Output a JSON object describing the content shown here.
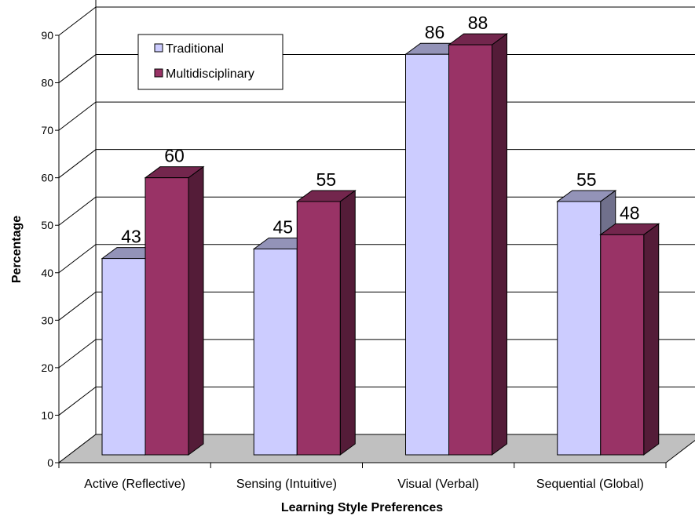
{
  "chart_data": {
    "type": "bar",
    "title": "",
    "xlabel": "Learning Style Preferences",
    "ylabel": "Percentage",
    "ylim": [
      0,
      90
    ],
    "yticks": [
      0,
      10,
      20,
      30,
      40,
      50,
      60,
      70,
      80,
      90
    ],
    "categories": [
      "Active (Reflective)",
      "Sensing (Intuitive)",
      "Visual (Verbal)",
      "Sequential (Global)"
    ],
    "series": [
      {
        "name": "Traditional",
        "values": [
          43,
          45,
          86,
          55
        ],
        "color": "#ccccff"
      },
      {
        "name": "Multidisciplinary",
        "values": [
          60,
          55,
          88,
          48
        ],
        "color": "#993366"
      }
    ],
    "grid": true,
    "legend_position": "top-left",
    "style": "3d-clustered-bar",
    "floor_color": "#c0c0c0"
  }
}
